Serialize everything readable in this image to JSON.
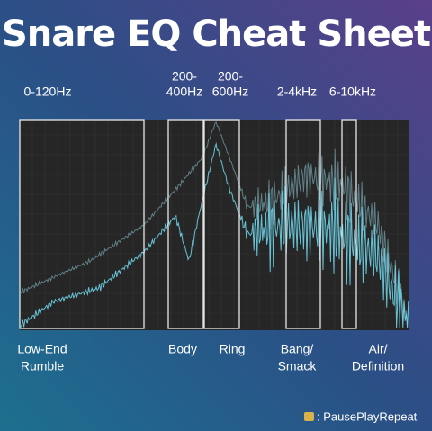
{
  "header": {
    "title": "Snare EQ Cheat Sheet"
  },
  "bands": [
    {
      "top": [
        "0-120Hz"
      ],
      "bottom": [
        "Low-End",
        "Rumble"
      ]
    },
    {
      "top": [
        "200-",
        "400Hz"
      ],
      "bottom": [
        "Body"
      ]
    },
    {
      "top": [
        "200-",
        "600Hz"
      ],
      "bottom": [
        "Ring"
      ]
    },
    {
      "top": [
        "2-4kHz"
      ],
      "bottom": [
        "Bang/",
        "Smack"
      ]
    },
    {
      "top": [
        "6-10kHz"
      ],
      "bottom": [
        "Air/",
        "Definition"
      ]
    }
  ],
  "footer": {
    "credit": ": PausePlayRepeat"
  }
}
